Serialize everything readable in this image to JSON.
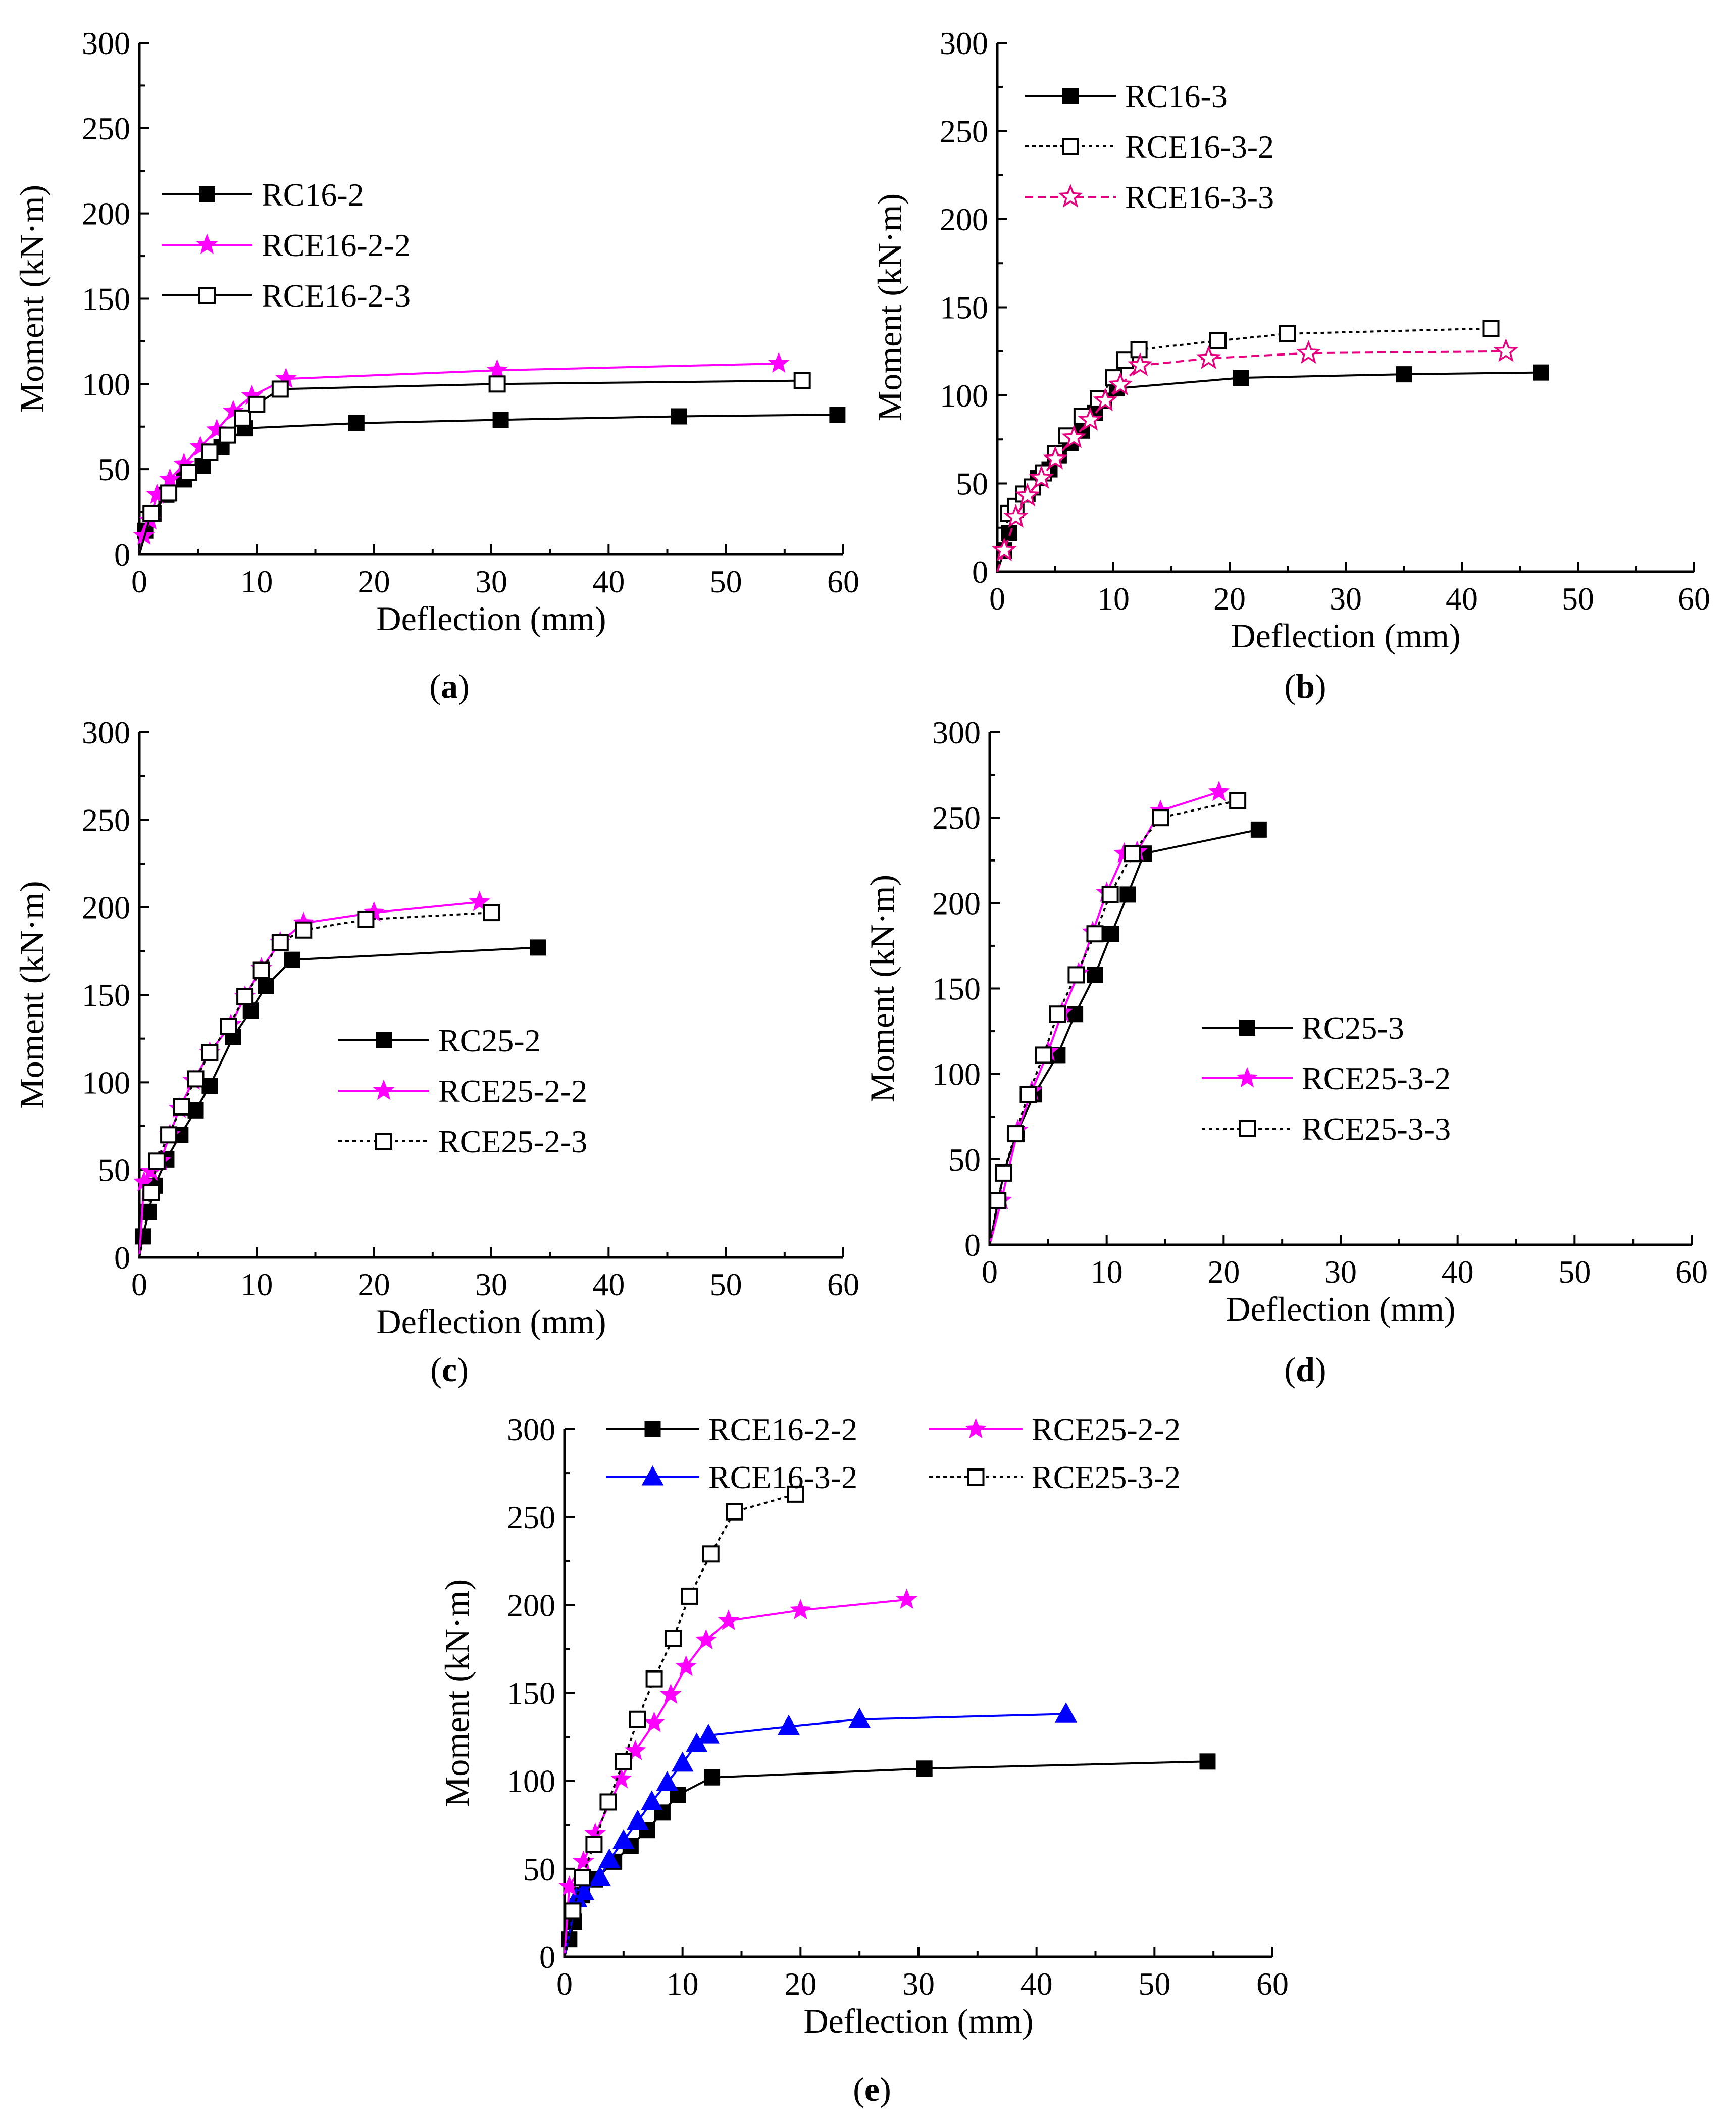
{
  "colors": {
    "black": "#000000",
    "magenta": "#ff00ff",
    "deep_pink": "#e6007e",
    "blue": "#0000ff"
  },
  "chart_data": [
    {
      "panel_label": "a",
      "type": "line",
      "xlabel": "Deflection (mm)",
      "ylabel": "Moment (kN·m)",
      "xlim": [
        0,
        60
      ],
      "ylim": [
        0,
        300
      ],
      "xticks": [
        0,
        10,
        20,
        30,
        40,
        50,
        60
      ],
      "yticks": [
        0,
        50,
        100,
        150,
        200,
        250,
        300
      ],
      "legend_position": "upper-left",
      "series": [
        {
          "name": "RC16-2",
          "color": "#000000",
          "marker": "square-filled",
          "dash": "solid",
          "x": [
            0,
            0.5,
            1.2,
            2.3,
            3.8,
            5.4,
            7,
            9,
            18.5,
            30.8,
            46,
            59.5
          ],
          "y": [
            0,
            14,
            24,
            35,
            44,
            52,
            63,
            74,
            77,
            79,
            81,
            82
          ]
        },
        {
          "name": "RCE16-2-2",
          "color": "#ff00ff",
          "marker": "star-filled",
          "dash": "solid",
          "x": [
            0,
            0.4,
            0.9,
            1.5,
            2.6,
            3.8,
            5.2,
            6.6,
            8,
            9.6,
            12.5,
            30.5,
            54.5
          ],
          "y": [
            0,
            11,
            20,
            35,
            44,
            53,
            63,
            73,
            84,
            93,
            103,
            108,
            112
          ]
        },
        {
          "name": "RCE16-2-3",
          "color": "#000000",
          "marker": "square-open",
          "dash": "solid",
          "x": [
            0,
            1,
            2.5,
            4.2,
            6,
            7.5,
            8.8,
            10,
            12,
            30.5,
            56.5
          ],
          "y": [
            0,
            24,
            36,
            48,
            60,
            70,
            80,
            88,
            97,
            100,
            102
          ]
        }
      ]
    },
    {
      "panel_label": "b",
      "type": "line",
      "xlabel": "Deflection (mm)",
      "ylabel": "Moment (kN·m)",
      "xlim": [
        0,
        60
      ],
      "ylim": [
        0,
        300
      ],
      "xticks": [
        0,
        10,
        20,
        30,
        40,
        50,
        60
      ],
      "yticks": [
        0,
        50,
        100,
        150,
        200,
        250,
        300
      ],
      "legend_position": "upper-left",
      "series": [
        {
          "name": "RC16-3",
          "color": "#000000",
          "marker": "square-filled",
          "dash": "solid",
          "x": [
            0,
            0.6,
            1,
            1.6,
            2.6,
            3.5,
            4.5,
            5.3,
            6.3,
            7.3,
            8.4,
            9.2,
            10.3,
            21,
            35,
            46.8
          ],
          "y": [
            0,
            12,
            22,
            35,
            44,
            53,
            58,
            66,
            73,
            80,
            90,
            97,
            104,
            110,
            112,
            113
          ]
        },
        {
          "name": "RCE16-3-2",
          "color": "#000000",
          "marker": "square-open",
          "dash": "dotted",
          "x": [
            0,
            1,
            1.6,
            2.3,
            3,
            4,
            5,
            6,
            7.3,
            8.7,
            10,
            11,
            12.2,
            19,
            25,
            42.5
          ],
          "y": [
            0,
            33,
            37,
            44,
            48,
            56,
            67,
            77,
            88,
            98,
            110,
            120,
            126,
            131,
            135,
            138
          ]
        },
        {
          "name": "RCE16-3-3",
          "color": "#e6007e",
          "marker": "star-open",
          "dash": "dashed",
          "x": [
            0,
            0.6,
            1.6,
            2.6,
            3.8,
            5,
            6.6,
            8,
            9.3,
            10.6,
            12.3,
            18.2,
            26.8,
            43.8
          ],
          "y": [
            0,
            12,
            31,
            43,
            53,
            64,
            76,
            86,
            97,
            106,
            117,
            121,
            124,
            125
          ]
        }
      ]
    },
    {
      "panel_label": "c",
      "type": "line",
      "xlabel": "Deflection (mm)",
      "ylabel": "Moment (kN·m)",
      "xlim": [
        0,
        60
      ],
      "ylim": [
        0,
        300
      ],
      "xticks": [
        0,
        10,
        20,
        30,
        40,
        50,
        60
      ],
      "yticks": [
        0,
        50,
        100,
        150,
        200,
        250,
        300
      ],
      "legend_position": "center-right",
      "series": [
        {
          "name": "RC25-2",
          "color": "#000000",
          "marker": "square-filled",
          "dash": "solid",
          "x": [
            0,
            0.3,
            0.8,
            1.3,
            2.3,
            3.5,
            4.8,
            6,
            8,
            9.5,
            10.8,
            13,
            34
          ],
          "y": [
            0,
            12,
            26,
            41,
            56,
            70,
            84,
            98,
            126,
            141,
            155,
            170,
            177
          ]
        },
        {
          "name": "RCE25-2-2",
          "color": "#ff00ff",
          "marker": "star-filled",
          "dash": "solid",
          "x": [
            0,
            0.4,
            1,
            1.8,
            2.6,
            3.4,
            4.6,
            6,
            7.8,
            9,
            10.4,
            12,
            14,
            20,
            29
          ],
          "y": [
            0,
            43,
            49,
            55,
            70,
            85,
            101,
            117,
            133,
            149,
            165,
            180,
            191,
            197,
            203
          ]
        },
        {
          "name": "RCE25-2-3",
          "color": "#000000",
          "marker": "square-open",
          "dash": "dotted",
          "x": [
            0,
            1,
            1.5,
            2.5,
            3.6,
            4.8,
            6,
            7.6,
            9,
            10.4,
            12,
            14,
            19.3,
            30
          ],
          "y": [
            0,
            37,
            55,
            70,
            86,
            102,
            117,
            132,
            149,
            164,
            180,
            187,
            193,
            197
          ]
        }
      ]
    },
    {
      "panel_label": "d",
      "type": "line",
      "xlabel": "Deflection (mm)",
      "ylabel": "Moment (kN·m)",
      "xlim": [
        0,
        60
      ],
      "ylim": [
        0,
        300
      ],
      "xticks": [
        0,
        10,
        20,
        30,
        40,
        50,
        60
      ],
      "yticks": [
        0,
        50,
        100,
        150,
        200,
        250,
        300
      ],
      "legend_position": "center-right",
      "series": [
        {
          "name": "RC25-3",
          "color": "#000000",
          "marker": "square-filled",
          "dash": "solid",
          "x": [
            0,
            1.2,
            2.3,
            3.8,
            5.8,
            7.3,
            9,
            10.4,
            11.8,
            13.2,
            23
          ],
          "y": [
            0,
            42,
            65,
            88,
            111,
            135,
            158,
            182,
            205,
            229,
            243
          ]
        },
        {
          "name": "RCE25-3-2",
          "color": "#ff00ff",
          "marker": "star-filled",
          "dash": "solid",
          "x": [
            0,
            1,
            2.4,
            3.6,
            5,
            6.2,
            7.6,
            8.8,
            10,
            11.5,
            12.6,
            14.6,
            19.6
          ],
          "y": [
            0,
            26,
            67,
            90,
            113,
            136,
            159,
            183,
            206,
            229,
            230,
            254,
            265
          ]
        },
        {
          "name": "RCE25-3-3",
          "color": "#000000",
          "marker": "square-open",
          "dash": "dotted",
          "x": [
            0,
            0.7,
            1.2,
            2.2,
            3.3,
            4.6,
            5.8,
            7.4,
            9,
            10.3,
            12.2,
            14.6,
            21.2
          ],
          "y": [
            0,
            26,
            42,
            65,
            88,
            111,
            135,
            158,
            182,
            205,
            229,
            250,
            260
          ]
        }
      ]
    },
    {
      "panel_label": "e",
      "type": "line",
      "xlabel": "Deflection (mm)",
      "ylabel": "Moment (kN·m)",
      "xlim": [
        0,
        60
      ],
      "ylim": [
        0,
        300
      ],
      "xticks": [
        0,
        10,
        20,
        30,
        40,
        50,
        60
      ],
      "yticks": [
        0,
        50,
        100,
        150,
        200,
        250,
        300
      ],
      "legend_position": "top, two columns",
      "legend_columns": 2,
      "series": [
        {
          "name": "RCE16-2-2",
          "color": "#000000",
          "marker": "square-filled",
          "dash": "solid",
          "x": [
            0,
            0.4,
            0.8,
            1.5,
            2.6,
            4.2,
            5.6,
            7,
            8.3,
            9.6,
            12.5,
            30.5,
            54.5
          ],
          "y": [
            0,
            10,
            20,
            35,
            44,
            54,
            63,
            72,
            82,
            92,
            102,
            107,
            111
          ]
        },
        {
          "name": "RCE16-3-2",
          "color": "#0000ff",
          "marker": "triangle-filled",
          "dash": "solid",
          "x": [
            0,
            1,
            1.6,
            3,
            3.8,
            5,
            6.2,
            7.4,
            8.7,
            10,
            11.2,
            12.2,
            19,
            25,
            42.5
          ],
          "y": [
            0,
            33,
            37,
            45,
            55,
            66,
            77,
            88,
            99,
            110,
            121,
            126,
            131,
            135,
            138
          ]
        },
        {
          "name": "RCE25-2-2",
          "color": "#ff00ff",
          "marker": "star-filled",
          "dash": "solid",
          "x": [
            0,
            0.4,
            1.6,
            2.6,
            4.8,
            6,
            7.6,
            9,
            10.3,
            12,
            13.9,
            20,
            29
          ],
          "y": [
            0,
            40,
            54,
            70,
            101,
            117,
            133,
            149,
            165,
            180,
            191,
            197,
            203
          ]
        },
        {
          "name": "RCE25-3-2",
          "color": "#000000",
          "marker": "square-open",
          "dash": "dotted",
          "x": [
            0,
            0.7,
            1.5,
            2.5,
            3.7,
            5,
            6.2,
            7.6,
            9.2,
            10.6,
            12.4,
            14.4,
            19.6
          ],
          "y": [
            0,
            26,
            45,
            64,
            88,
            111,
            135,
            158,
            181,
            205,
            229,
            253,
            263
          ]
        }
      ]
    }
  ]
}
